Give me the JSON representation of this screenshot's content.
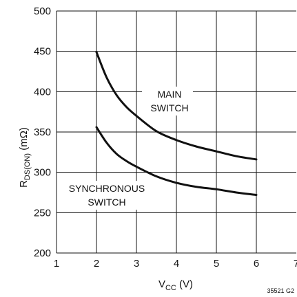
{
  "chart_data": {
    "type": "line",
    "xlabel": {
      "main": "V",
      "sub": "CC",
      "suffix": " (V)"
    },
    "ylabel": {
      "main": "R",
      "sub": "DS(ON)",
      "suffix": " (mΩ)"
    },
    "xlim": [
      1,
      7
    ],
    "ylim": [
      200,
      500
    ],
    "x_ticks": [
      1,
      2,
      3,
      4,
      5,
      6,
      7
    ],
    "y_ticks": [
      200,
      250,
      300,
      350,
      400,
      450,
      500
    ],
    "grid": true,
    "series": [
      {
        "name": "MAIN SWITCH",
        "label_lines": [
          "MAIN",
          "SWITCH"
        ],
        "x": [
          2,
          2.25,
          2.5,
          2.75,
          3,
          3.5,
          4,
          4.5,
          5,
          5.5,
          6
        ],
        "y": [
          449,
          418,
          396,
          381,
          370,
          351,
          340,
          332,
          326,
          320,
          316
        ]
      },
      {
        "name": "SYNCHRONOUS SWITCH",
        "label_lines": [
          "SYNCHRONOUS",
          "SWITCH"
        ],
        "x": [
          2,
          2.25,
          2.5,
          2.75,
          3,
          3.5,
          4,
          4.5,
          5,
          5.5,
          6
        ],
        "y": [
          356,
          337,
          323,
          314,
          307,
          295,
          287,
          282,
          279,
          275,
          272
        ]
      }
    ],
    "figure_id": "35521 G2"
  }
}
